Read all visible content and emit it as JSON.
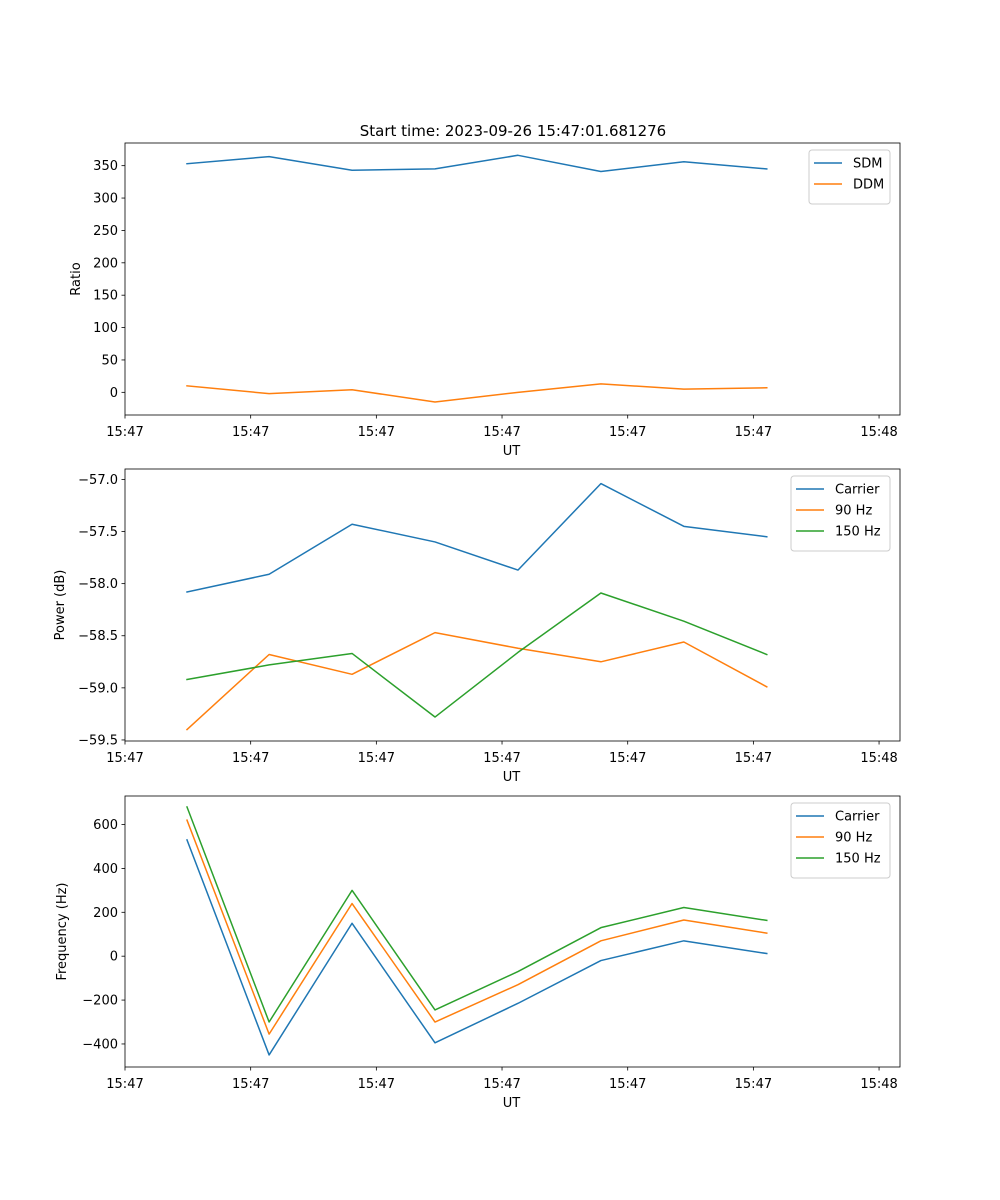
{
  "figure": {
    "title": "Start time: 2023-09-26 15:47:01.681276"
  },
  "chart_data": [
    {
      "type": "line",
      "xlabel": "UT",
      "ylabel": "Ratio",
      "xlim": [
        0,
        9.25
      ],
      "ylim": [
        -35,
        385
      ],
      "yticks": [
        0,
        50,
        100,
        150,
        200,
        250,
        300,
        350
      ],
      "ytick_labels": [
        "0",
        "50",
        "100",
        "150",
        "200",
        "250",
        "300",
        "350"
      ],
      "xticks": [
        0,
        1.5,
        3,
        4.5,
        6,
        7.5,
        9
      ],
      "xtick_labels": [
        "15:47",
        "15:47",
        "15:47",
        "15:47",
        "15:47",
        "15:47",
        "15:48"
      ],
      "x": [
        0.74,
        1.72,
        2.71,
        3.7,
        4.69,
        5.68,
        6.67,
        7.66
      ],
      "legend_position": "upper-right",
      "series": [
        {
          "name": "SDM",
          "color": "#1f77b4",
          "values": [
            353,
            364,
            343,
            345,
            366,
            341,
            356,
            345
          ]
        },
        {
          "name": "DDM",
          "color": "#ff7f0e",
          "values": [
            10,
            -2,
            4,
            -15,
            0,
            13,
            5,
            7
          ]
        }
      ]
    },
    {
      "type": "line",
      "xlabel": "UT",
      "ylabel": "Power (dB)",
      "xlim": [
        0,
        9.25
      ],
      "ylim": [
        -59.51,
        -56.9
      ],
      "yticks": [
        -59.5,
        -59.0,
        -58.5,
        -58.0,
        -57.5,
        -57.0
      ],
      "ytick_labels": [
        "−59.5",
        "−59.0",
        "−58.5",
        "−58.0",
        "−57.5",
        "−57.0"
      ],
      "xticks": [
        0,
        1.5,
        3,
        4.5,
        6,
        7.5,
        9
      ],
      "xtick_labels": [
        "15:47",
        "15:47",
        "15:47",
        "15:47",
        "15:47",
        "15:47",
        "15:48"
      ],
      "x": [
        0.74,
        1.72,
        2.71,
        3.7,
        4.69,
        5.68,
        6.67,
        7.66
      ],
      "legend_position": "upper-right",
      "series": [
        {
          "name": "Carrier",
          "color": "#1f77b4",
          "values": [
            -58.08,
            -57.91,
            -57.43,
            -57.6,
            -57.87,
            -57.04,
            -57.45,
            -57.55
          ]
        },
        {
          "name": "90 Hz",
          "color": "#ff7f0e",
          "values": [
            -59.4,
            -58.68,
            -58.87,
            -58.47,
            -58.62,
            -58.75,
            -58.56,
            -58.99
          ]
        },
        {
          "name": "150 Hz",
          "color": "#2ca02c",
          "values": [
            -58.92,
            -58.78,
            -58.67,
            -59.28,
            -58.66,
            -58.09,
            -58.36,
            -58.68
          ]
        }
      ]
    },
    {
      "type": "line",
      "xlabel": "UT",
      "ylabel": "Frequency (Hz)",
      "xlim": [
        0,
        9.25
      ],
      "ylim": [
        -505,
        730
      ],
      "yticks": [
        -400,
        -200,
        0,
        200,
        400,
        600
      ],
      "ytick_labels": [
        "−400",
        "−200",
        "0",
        "200",
        "400",
        "600"
      ],
      "xticks": [
        0,
        1.5,
        3,
        4.5,
        6,
        7.5,
        9
      ],
      "xtick_labels": [
        "15:47",
        "15:47",
        "15:47",
        "15:47",
        "15:47",
        "15:47",
        "15:48"
      ],
      "x": [
        0.74,
        1.72,
        2.71,
        3.7,
        4.69,
        5.68,
        6.67,
        7.66
      ],
      "legend_position": "upper-right",
      "series": [
        {
          "name": "Carrier",
          "color": "#1f77b4",
          "values": [
            530,
            -450,
            150,
            -395,
            -215,
            -20,
            70,
            12
          ]
        },
        {
          "name": "90 Hz",
          "color": "#ff7f0e",
          "values": [
            620,
            -355,
            240,
            -300,
            -130,
            70,
            165,
            105
          ]
        },
        {
          "name": "150 Hz",
          "color": "#2ca02c",
          "values": [
            680,
            -300,
            300,
            -245,
            -70,
            130,
            222,
            163
          ]
        }
      ]
    }
  ]
}
